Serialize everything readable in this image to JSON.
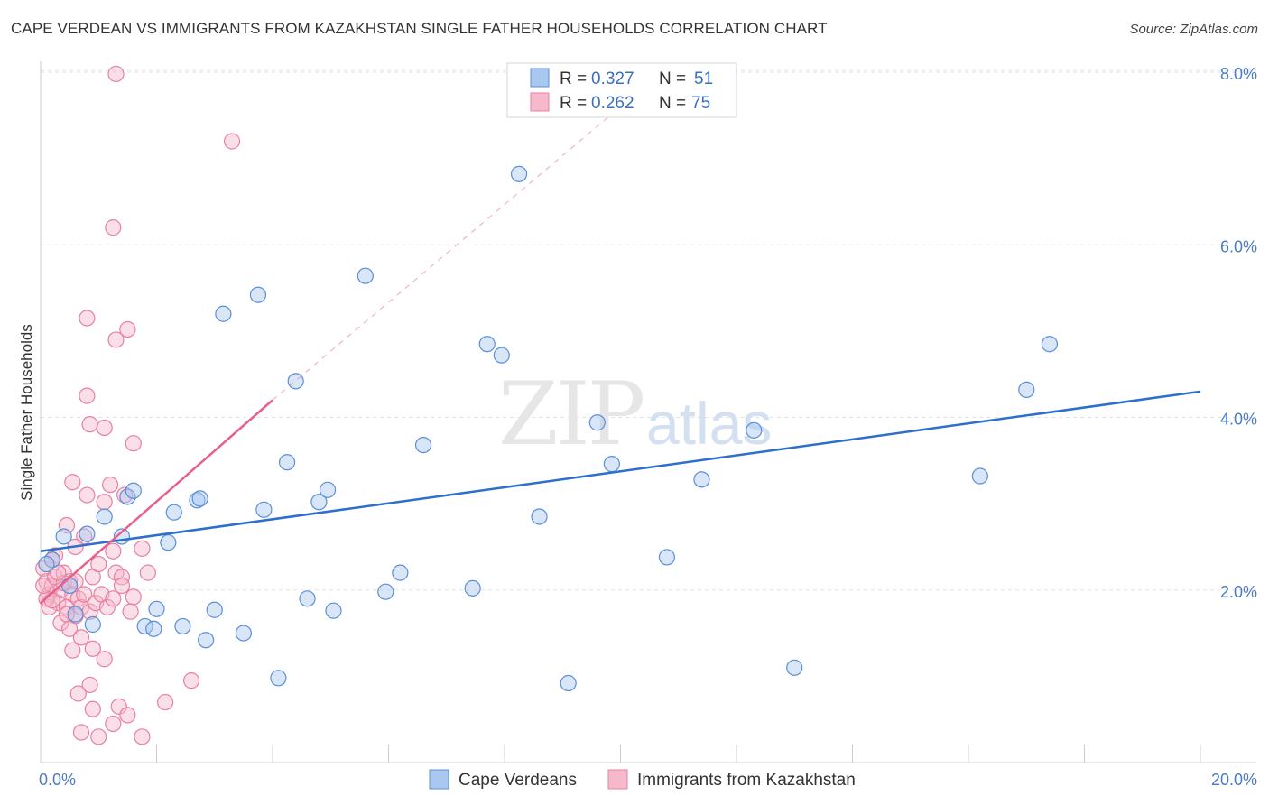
{
  "title": "CAPE VERDEAN VS IMMIGRANTS FROM KAZAKHSTAN SINGLE FATHER HOUSEHOLDS CORRELATION CHART",
  "source": "Source: ZipAtlas.com",
  "watermark": {
    "zip": "ZIP",
    "atlas": "atlas"
  },
  "colors": {
    "blue_fill": "#a9c8f0",
    "blue_stroke": "#5b8fd6",
    "blue_line": "#2c6fcc",
    "pink_fill": "#f6b8cb",
    "pink_stroke": "#e8809f",
    "pink_line": "#e8608a",
    "grid": "#e2e2e2",
    "axis_text": "#4a7cc4"
  },
  "legend": {
    "rows": [
      {
        "r_label": "R =",
        "r_value": "0.327",
        "n_label": "N =",
        "n_value": "51"
      },
      {
        "r_label": "R =",
        "r_value": "0.262",
        "n_label": "N =",
        "n_value": "75"
      }
    ]
  },
  "chart_data": {
    "type": "scatter",
    "title": "CAPE VERDEAN VS IMMIGRANTS FROM KAZAKHSTAN SINGLE FATHER HOUSEHOLDS CORRELATION CHART",
    "xlabel": "",
    "ylabel": "Single Father Households",
    "xlim": [
      0,
      20
    ],
    "ylim": [
      0,
      8
    ],
    "x_tick_labels": [
      "0.0%",
      "20.0%"
    ],
    "y_ticks": [
      2,
      4,
      6,
      8
    ],
    "y_tick_labels": [
      "2.0%",
      "4.0%",
      "6.0%",
      "8.0%"
    ],
    "grid": true,
    "legend_position": "top-center",
    "series": [
      {
        "name": "Cape Verdeans",
        "color": "blue",
        "trend": {
          "x0": 0,
          "y0": 2.45,
          "x1": 20,
          "y1": 4.3
        },
        "points": [
          [
            0.2,
            2.35
          ],
          [
            0.4,
            2.62
          ],
          [
            0.5,
            2.05
          ],
          [
            0.6,
            1.72
          ],
          [
            0.8,
            2.65
          ],
          [
            0.9,
            1.6
          ],
          [
            1.1,
            2.85
          ],
          [
            1.4,
            2.62
          ],
          [
            1.5,
            3.08
          ],
          [
            1.6,
            3.15
          ],
          [
            1.8,
            1.58
          ],
          [
            1.95,
            1.55
          ],
          [
            2.0,
            1.78
          ],
          [
            2.2,
            2.55
          ],
          [
            2.3,
            2.9
          ],
          [
            2.45,
            1.58
          ],
          [
            2.7,
            3.04
          ],
          [
            2.75,
            3.06
          ],
          [
            2.85,
            1.42
          ],
          [
            3.0,
            1.77
          ],
          [
            3.15,
            5.2
          ],
          [
            3.5,
            1.5
          ],
          [
            3.75,
            5.42
          ],
          [
            3.85,
            2.93
          ],
          [
            4.1,
            0.98
          ],
          [
            4.25,
            3.48
          ],
          [
            4.4,
            4.42
          ],
          [
            4.6,
            1.9
          ],
          [
            4.8,
            3.02
          ],
          [
            4.95,
            3.16
          ],
          [
            5.05,
            1.76
          ],
          [
            5.6,
            5.64
          ],
          [
            5.95,
            1.98
          ],
          [
            6.2,
            2.2
          ],
          [
            6.6,
            3.68
          ],
          [
            7.45,
            2.02
          ],
          [
            7.7,
            4.85
          ],
          [
            7.95,
            4.72
          ],
          [
            8.25,
            6.82
          ],
          [
            8.6,
            2.85
          ],
          [
            9.1,
            0.92
          ],
          [
            9.6,
            3.94
          ],
          [
            9.85,
            3.46
          ],
          [
            10.8,
            2.38
          ],
          [
            11.4,
            3.28
          ],
          [
            12.3,
            3.85
          ],
          [
            13.0,
            1.1
          ],
          [
            16.2,
            3.32
          ],
          [
            17.0,
            4.32
          ],
          [
            17.4,
            4.85
          ],
          [
            0.1,
            2.3
          ]
        ]
      },
      {
        "name": "Immigrants from Kazakhstan",
        "color": "pink",
        "trend": {
          "x0": 0,
          "y0": 1.85,
          "x1": 4,
          "y1": 4.2
        },
        "trend_extension": {
          "x0": 4,
          "y0": 4.2,
          "x1": 10,
          "y1": 7.6
        },
        "points": [
          [
            1.3,
            7.98
          ],
          [
            3.3,
            7.2
          ],
          [
            1.25,
            6.2
          ],
          [
            0.8,
            5.15
          ],
          [
            1.5,
            5.02
          ],
          [
            1.3,
            4.9
          ],
          [
            0.8,
            4.25
          ],
          [
            0.85,
            3.92
          ],
          [
            1.1,
            3.88
          ],
          [
            1.6,
            3.7
          ],
          [
            0.55,
            3.25
          ],
          [
            1.2,
            3.22
          ],
          [
            0.8,
            3.1
          ],
          [
            1.1,
            3.02
          ],
          [
            1.45,
            3.1
          ],
          [
            0.45,
            2.75
          ],
          [
            1.25,
            2.45
          ],
          [
            0.75,
            2.62
          ],
          [
            1.75,
            2.48
          ],
          [
            0.25,
            2.4
          ],
          [
            0.6,
            2.5
          ],
          [
            0.9,
            2.15
          ],
          [
            1.0,
            2.3
          ],
          [
            1.3,
            2.2
          ],
          [
            1.4,
            2.15
          ],
          [
            1.85,
            2.2
          ],
          [
            0.05,
            2.25
          ],
          [
            0.1,
            2.1
          ],
          [
            0.15,
            1.95
          ],
          [
            0.2,
            2.05
          ],
          [
            0.25,
            2.15
          ],
          [
            0.3,
            1.85
          ],
          [
            0.35,
            2.0
          ],
          [
            0.4,
            2.2
          ],
          [
            0.45,
            1.8
          ],
          [
            0.5,
            2.1
          ],
          [
            0.55,
            1.95
          ],
          [
            0.6,
            1.7
          ],
          [
            0.65,
            1.9
          ],
          [
            0.7,
            1.8
          ],
          [
            0.75,
            1.95
          ],
          [
            0.85,
            1.75
          ],
          [
            0.95,
            1.85
          ],
          [
            1.05,
            1.95
          ],
          [
            1.15,
            1.8
          ],
          [
            1.25,
            1.9
          ],
          [
            1.4,
            2.05
          ],
          [
            1.6,
            1.92
          ],
          [
            1.55,
            1.75
          ],
          [
            0.15,
            1.8
          ],
          [
            0.1,
            1.9
          ],
          [
            0.05,
            2.05
          ],
          [
            0.2,
            2.35
          ],
          [
            0.35,
            1.62
          ],
          [
            0.5,
            1.55
          ],
          [
            0.55,
            1.3
          ],
          [
            0.7,
            1.45
          ],
          [
            0.9,
            1.32
          ],
          [
            1.1,
            1.2
          ],
          [
            0.85,
            0.9
          ],
          [
            0.65,
            0.8
          ],
          [
            0.9,
            0.62
          ],
          [
            1.35,
            0.65
          ],
          [
            1.5,
            0.55
          ],
          [
            2.15,
            0.7
          ],
          [
            2.6,
            0.95
          ],
          [
            0.7,
            0.35
          ],
          [
            1.0,
            0.3
          ],
          [
            1.25,
            0.45
          ],
          [
            1.75,
            0.3
          ],
          [
            0.4,
            2.08
          ],
          [
            0.3,
            2.2
          ],
          [
            0.2,
            1.88
          ],
          [
            0.6,
            2.1
          ],
          [
            0.45,
            1.72
          ]
        ]
      }
    ]
  }
}
